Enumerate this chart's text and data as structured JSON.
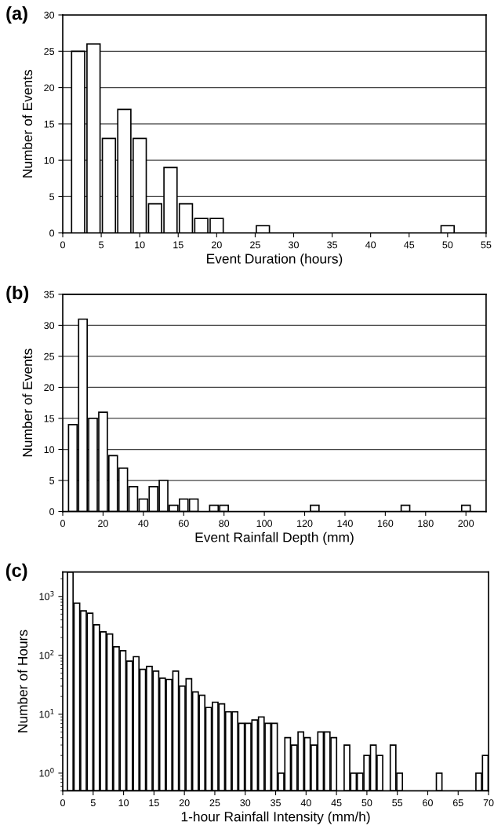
{
  "chart_data": [
    {
      "type": "histogram",
      "title": "(a)",
      "xlabel": "Event Duration (hours)",
      "ylabel": "Number of Events",
      "color": "#ffffff",
      "bins": [
        1,
        3,
        5,
        7,
        9,
        11,
        13,
        15,
        17,
        19,
        21,
        23,
        25,
        27,
        29,
        31,
        33,
        35,
        37,
        39,
        41,
        43,
        45,
        47,
        49,
        51
      ],
      "values": [
        25,
        26,
        13,
        17,
        13,
        4,
        9,
        4,
        2,
        2,
        0,
        0,
        1,
        0,
        0,
        0,
        0,
        0,
        0,
        0,
        0,
        0,
        0,
        0,
        1
      ],
      "xlim": [
        0,
        55
      ],
      "xticks": [
        0,
        5,
        10,
        15,
        20,
        25,
        30,
        35,
        40,
        45,
        50,
        55
      ],
      "ylim": [
        0,
        30
      ],
      "yticks": [
        0,
        5,
        10,
        15,
        20,
        25,
        30
      ],
      "grid": "y"
    },
    {
      "type": "histogram",
      "title": "(b)",
      "xlabel": "Event Rainfall Depth (mm)",
      "ylabel": "Number of Events",
      "color": "#ffffff",
      "bins": [
        2.5,
        7.5,
        12.5,
        17.5,
        22.5,
        27.5,
        32.5,
        37.5,
        42.5,
        47.5,
        52.5,
        57.5,
        62.5,
        67.5,
        72.5,
        77.5,
        82.5,
        87.5,
        92.5,
        97.5,
        102.5,
        107.5,
        112.5,
        117.5,
        122.5,
        127.5,
        132.5,
        137.5,
        142.5,
        147.5,
        152.5,
        157.5,
        162.5,
        167.5,
        172.5,
        177.5,
        182.5,
        187.5,
        192.5,
        197.5,
        202.5
      ],
      "values": [
        14,
        31,
        15,
        16,
        9,
        7,
        4,
        2,
        4,
        5,
        1,
        2,
        2,
        0,
        1,
        1,
        0,
        0,
        0,
        0,
        0,
        0,
        0,
        0,
        1,
        0,
        0,
        0,
        0,
        0,
        0,
        0,
        0,
        1,
        0,
        0,
        0,
        0,
        0,
        1
      ],
      "xlim": [
        0,
        210
      ],
      "xticks": [
        0,
        20,
        40,
        60,
        80,
        100,
        120,
        140,
        160,
        180,
        200
      ],
      "ylim": [
        0,
        35
      ],
      "yticks": [
        0,
        5,
        10,
        15,
        20,
        25,
        30,
        35
      ],
      "grid": "y"
    },
    {
      "type": "histogram",
      "title": "(c)",
      "xlabel": "1-hour Rainfall Intensity (mm/h)",
      "ylabel": "Number of Hours",
      "color": "#ffffff",
      "log": "y",
      "bins": [
        0.7,
        1.78,
        2.87,
        3.95,
        5.03,
        6.11,
        7.2,
        8.28,
        9.36,
        10.45,
        11.53,
        12.61,
        13.69,
        14.78,
        15.86,
        16.94,
        18.02,
        19.11,
        20.19,
        21.27,
        22.36,
        23.44,
        24.52,
        25.6,
        26.69,
        27.77,
        28.85,
        29.94,
        31.02,
        32.1,
        33.18,
        34.27,
        35.35,
        36.43,
        37.52,
        38.6,
        39.68,
        40.76,
        41.85,
        42.93,
        44.01,
        45.1,
        46.18,
        47.26,
        48.34,
        49.43,
        50.51,
        51.59,
        52.68,
        53.76,
        54.84,
        55.92,
        57.01,
        58.09,
        59.17,
        60.26,
        61.34,
        62.42,
        63.5,
        64.59,
        65.67,
        66.75,
        67.84,
        68.92,
        70
      ],
      "values": [
        2600,
        770,
        570,
        520,
        330,
        250,
        230,
        140,
        120,
        80,
        95,
        58,
        65,
        54,
        41,
        39,
        54,
        30,
        40,
        24,
        21,
        13,
        16,
        15,
        11,
        11,
        7,
        7,
        8,
        9,
        7,
        7,
        1,
        4,
        3,
        5,
        4,
        3,
        5,
        5,
        4,
        null,
        3,
        1,
        1,
        2,
        3,
        2,
        null,
        3,
        1,
        null,
        null,
        null,
        null,
        null,
        1,
        null,
        null,
        null,
        null,
        null,
        1,
        2
      ],
      "xlim": [
        0,
        70
      ],
      "xticks": [
        0,
        5,
        10,
        15,
        20,
        25,
        30,
        35,
        40,
        45,
        50,
        55,
        60,
        65,
        70
      ],
      "ylim": [
        0.5,
        2600
      ],
      "yticks": [
        {
          "value": 1,
          "label": "10$^{0}$"
        },
        {
          "value": 10,
          "label": "10$^{1}$"
        },
        {
          "value": 100,
          "label": "10$^{2}$"
        },
        {
          "value": 1000,
          "label": "10$^{3}$"
        }
      ]
    }
  ]
}
